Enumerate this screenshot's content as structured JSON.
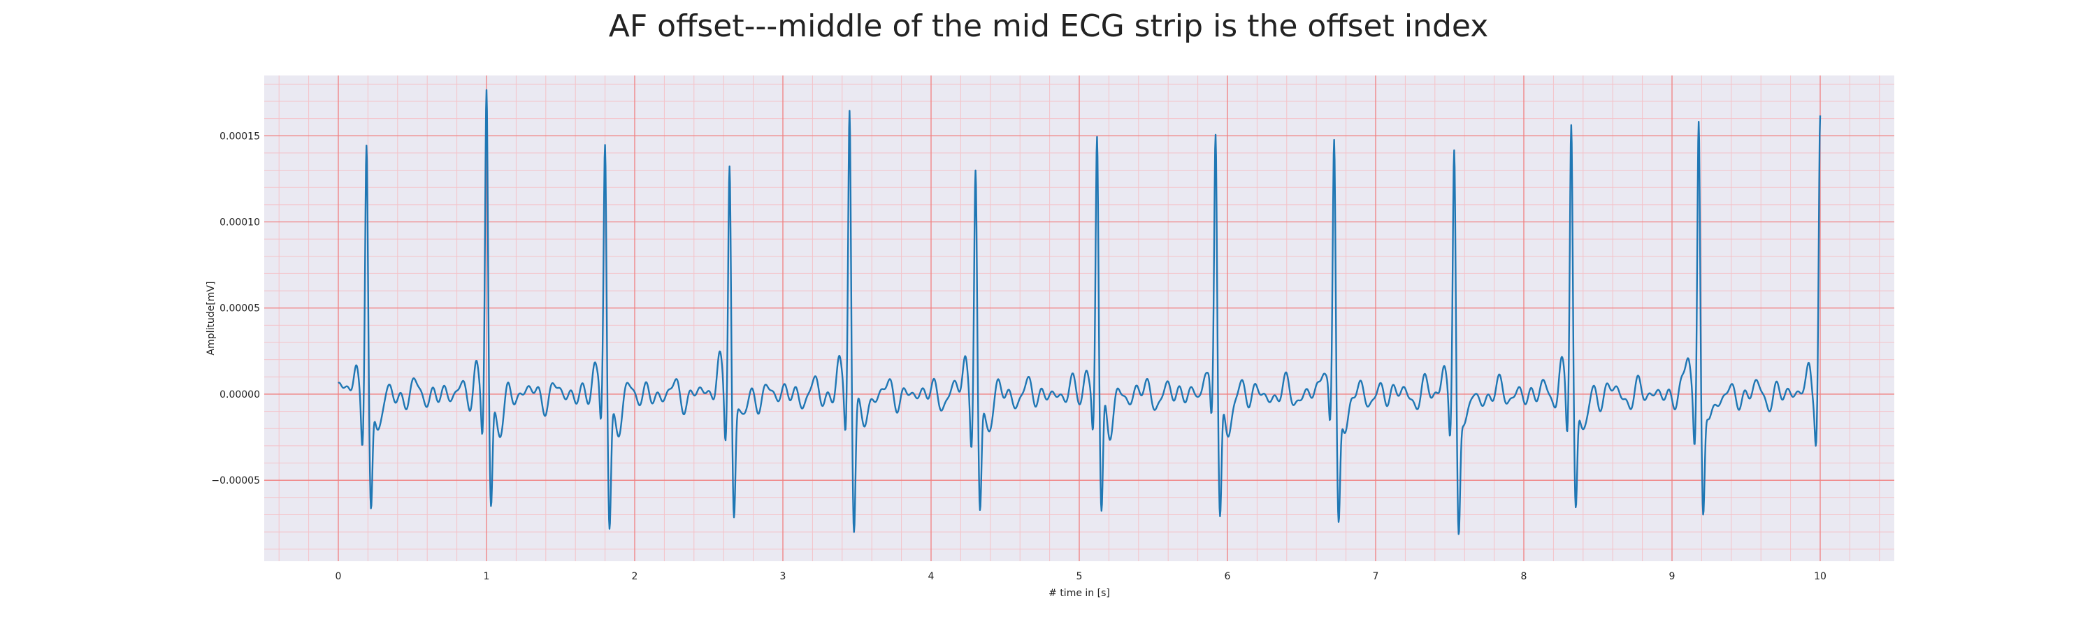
{
  "chart_data": {
    "type": "line",
    "title": "AF offset---middle of the mid ECG strip is the offset index",
    "xlabel": "# time in [s]",
    "ylabel": "Amplitude[mV]",
    "xlim": [
      -0.5,
      10.5
    ],
    "ylim": [
      -9.7e-05,
      0.000185
    ],
    "x_ticks": [
      0,
      1,
      2,
      3,
      4,
      5,
      6,
      7,
      8,
      9,
      10
    ],
    "x_tick_labels": [
      "0",
      "1",
      "2",
      "3",
      "4",
      "5",
      "6",
      "7",
      "8",
      "9",
      "10"
    ],
    "y_ticks": [
      -5e-05,
      0.0,
      5e-05,
      0.0001,
      0.00015
    ],
    "y_tick_labels": [
      "−0.00005",
      "0.00000",
      "0.00005",
      "0.00010",
      "0.00015"
    ],
    "grid": true,
    "colors": {
      "plot_background": "#eae9f2",
      "major_grid": "#f08080",
      "minor_grid": "#f4c2c8",
      "series": "#1f77b4"
    },
    "series": [
      {
        "r_peaks": [
          {
            "x": 0.19,
            "y": 0.000143,
            "s_y": -7.6e-05
          },
          {
            "x": 1.0,
            "y": 0.000171,
            "s_y": -7.1e-05
          },
          {
            "x": 1.8,
            "y": 0.000142,
            "s_y": -7.5e-05
          },
          {
            "x": 2.64,
            "y": 0.00014,
            "s_y": -7.3e-05
          },
          {
            "x": 3.45,
            "y": 0.000167,
            "s_y": -7.9e-05
          },
          {
            "x": 4.3,
            "y": 0.000131,
            "s_y": -7.4e-05
          },
          {
            "x": 5.12,
            "y": 0.000149,
            "s_y": -7.6e-05
          },
          {
            "x": 5.92,
            "y": 0.00015,
            "s_y": -7.4e-05
          },
          {
            "x": 6.72,
            "y": 0.000147,
            "s_y": -7.4e-05
          },
          {
            "x": 7.53,
            "y": 0.000138,
            "s_y": -8.3e-05
          },
          {
            "x": 8.32,
            "y": 0.000155,
            "s_y": -7.3e-05
          },
          {
            "x": 9.18,
            "y": 0.000162,
            "s_y": -7.3e-05
          },
          {
            "x": 10.0,
            "y": 0.000156,
            "s_y": -4.6e-05
          }
        ],
        "x_start": 0.0,
        "x_end": 10.0
      }
    ]
  }
}
